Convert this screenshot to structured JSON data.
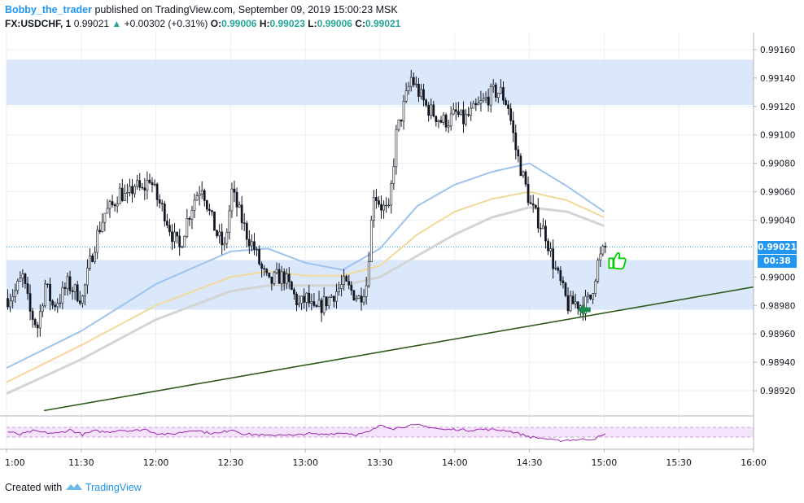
{
  "header": {
    "author": "Bobby_the_trader",
    "published": "published on TradingView.com, September 09, 2019 15:00:23 MSK",
    "symbol": "FX:USDCHF, 1",
    "last": "0.99021",
    "arrow": "▲",
    "change": "+0.00302 (+0.31%)",
    "o_label": "O:",
    "o_value": "0.99006",
    "h_label": "H:",
    "h_value": "0.99023",
    "l_label": "L:",
    "l_value": "0.99006",
    "c_label": "C:",
    "c_value": "0.99021"
  },
  "footer": {
    "created": "Created with",
    "brand": "TradingView",
    "logo_icon": "tradingview-logo-icon"
  },
  "price_badge": {
    "price": "0.99021",
    "countdown": "00:38",
    "price_color": "#2196f3",
    "countdown_color": "#2196f3"
  },
  "chart_data": {
    "type": "candlestick",
    "x_start": "11:00",
    "x_end": "16:00",
    "x_ticks": [
      "1:00",
      "11:30",
      "12:00",
      "12:30",
      "13:00",
      "13:30",
      "14:00",
      "14:30",
      "15:00",
      "15:30",
      "16:00"
    ],
    "y_range": [
      0.98904,
      0.99172
    ],
    "y_ticks": [
      "0.99160",
      "0.99140",
      "0.99120",
      "0.99100",
      "0.99080",
      "0.99060",
      "0.99040",
      "0.99000",
      "0.98980",
      "0.98960",
      "0.98940",
      "0.98920"
    ],
    "up_color": "#ffffff",
    "down_color": "#131722",
    "close_path": [
      [
        "11:00",
        0.98985
      ],
      [
        "11:03",
        0.9899
      ],
      [
        "11:06",
        0.99
      ],
      [
        "11:09",
        0.98975
      ],
      [
        "11:12",
        0.98965
      ],
      [
        "11:15",
        0.98995
      ],
      [
        "11:18",
        0.9898
      ],
      [
        "11:21",
        0.98985
      ],
      [
        "11:24",
        0.98995
      ],
      [
        "11:27",
        0.9899
      ],
      [
        "11:30",
        0.98985
      ],
      [
        "11:33",
        0.9901
      ],
      [
        "11:36",
        0.9903
      ],
      [
        "11:39",
        0.99045
      ],
      [
        "11:42",
        0.9905
      ],
      [
        "11:45",
        0.9906
      ],
      [
        "11:48",
        0.99055
      ],
      [
        "11:51",
        0.99065
      ],
      [
        "11:54",
        0.9906
      ],
      [
        "11:57",
        0.9907
      ],
      [
        "12:00",
        0.99055
      ],
      [
        "12:03",
        0.99045
      ],
      [
        "12:06",
        0.9903
      ],
      [
        "12:09",
        0.9902
      ],
      [
        "12:12",
        0.9904
      ],
      [
        "12:15",
        0.99055
      ],
      [
        "12:18",
        0.99065
      ],
      [
        "12:21",
        0.99045
      ],
      [
        "12:24",
        0.9903
      ],
      [
        "12:27",
        0.9902
      ],
      [
        "12:30",
        0.9906
      ],
      [
        "12:33",
        0.99045
      ],
      [
        "12:36",
        0.9903
      ],
      [
        "12:39",
        0.9902
      ],
      [
        "12:42",
        0.99005
      ],
      [
        "12:45",
        0.98995
      ],
      [
        "12:48",
        0.99
      ],
      [
        "12:51",
        0.99
      ],
      [
        "12:54",
        0.9899
      ],
      [
        "12:57",
        0.9898
      ],
      [
        "13:00",
        0.98985
      ],
      [
        "13:03",
        0.98975
      ],
      [
        "13:06",
        0.9898
      ],
      [
        "13:09",
        0.98985
      ],
      [
        "13:12",
        0.9899
      ],
      [
        "13:15",
        0.98995
      ],
      [
        "13:18",
        0.9899
      ],
      [
        "13:21",
        0.98985
      ],
      [
        "13:24",
        0.98995
      ],
      [
        "13:27",
        0.9906
      ],
      [
        "13:30",
        0.9905
      ],
      [
        "13:33",
        0.99045
      ],
      [
        "13:36",
        0.991
      ],
      [
        "13:39",
        0.9912
      ],
      [
        "13:42",
        0.9914
      ],
      [
        "13:45",
        0.9913
      ],
      [
        "13:48",
        0.9912
      ],
      [
        "13:51",
        0.99115
      ],
      [
        "13:54",
        0.9911
      ],
      [
        "13:57",
        0.9911
      ],
      [
        "14:00",
        0.99115
      ],
      [
        "14:03",
        0.9911
      ],
      [
        "14:06",
        0.99115
      ],
      [
        "14:09",
        0.9912
      ],
      [
        "14:12",
        0.99125
      ],
      [
        "14:15",
        0.9913
      ],
      [
        "14:18",
        0.9913
      ],
      [
        "14:21",
        0.9912
      ],
      [
        "14:24",
        0.9909
      ],
      [
        "14:27",
        0.9907
      ],
      [
        "14:30",
        0.9905
      ],
      [
        "14:33",
        0.9904
      ],
      [
        "14:36",
        0.9903
      ],
      [
        "14:39",
        0.9901
      ],
      [
        "14:42",
        0.98995
      ],
      [
        "14:45",
        0.9898
      ],
      [
        "14:48",
        0.98982
      ],
      [
        "14:51",
        0.9898
      ],
      [
        "14:54",
        0.98985
      ],
      [
        "14:57",
        0.9901
      ],
      [
        "15:00",
        0.99021
      ]
    ],
    "supply_zone": [
      0.99121,
      0.99153
    ],
    "demand_zone": [
      0.98977,
      0.99012
    ],
    "trendline": [
      [
        "11:15",
        0.98906
      ],
      [
        "16:00",
        0.98993
      ]
    ],
    "ma_blue": [
      [
        "11:00",
        0.98936
      ],
      [
        "11:30",
        0.98962
      ],
      [
        "12:00",
        0.98995
      ],
      [
        "12:30",
        0.99018
      ],
      [
        "12:45",
        0.9902
      ],
      [
        "13:00",
        0.9901
      ],
      [
        "13:15",
        0.99005
      ],
      [
        "13:30",
        0.9902
      ],
      [
        "13:45",
        0.9905
      ],
      [
        "14:00",
        0.99065
      ],
      [
        "14:15",
        0.99074
      ],
      [
        "14:30",
        0.9908
      ],
      [
        "14:45",
        0.99064
      ],
      [
        "15:00",
        0.99046
      ]
    ],
    "ma_yellow": [
      [
        "11:00",
        0.98926
      ],
      [
        "11:30",
        0.98952
      ],
      [
        "12:00",
        0.9898
      ],
      [
        "12:30",
        0.99
      ],
      [
        "12:45",
        0.99004
      ],
      [
        "13:00",
        0.99001
      ],
      [
        "13:15",
        0.99001
      ],
      [
        "13:30",
        0.99008
      ],
      [
        "13:45",
        0.9903
      ],
      [
        "14:00",
        0.99046
      ],
      [
        "14:15",
        0.99055
      ],
      [
        "14:30",
        0.9906
      ],
      [
        "14:45",
        0.99054
      ],
      [
        "15:00",
        0.99042
      ]
    ],
    "ma_gray": [
      [
        "11:00",
        0.98918
      ],
      [
        "11:30",
        0.98942
      ],
      [
        "12:00",
        0.9897
      ],
      [
        "12:30",
        0.9899
      ],
      [
        "12:45",
        0.98994
      ],
      [
        "13:00",
        0.98994
      ],
      [
        "13:15",
        0.98994
      ],
      [
        "13:30",
        0.99
      ],
      [
        "13:45",
        0.99015
      ],
      [
        "14:00",
        0.9903
      ],
      [
        "14:15",
        0.99042
      ],
      [
        "14:30",
        0.99049
      ],
      [
        "14:45",
        0.99046
      ],
      [
        "15:00",
        0.99036
      ]
    ],
    "rsi": {
      "band": [
        30,
        70
      ],
      "color": "#9c27b0",
      "values": [
        [
          "11:00",
          52
        ],
        [
          "11:05",
          40
        ],
        [
          "11:10",
          55
        ],
        [
          "11:15",
          48
        ],
        [
          "11:20",
          45
        ],
        [
          "11:25",
          60
        ],
        [
          "11:30",
          40
        ],
        [
          "11:35",
          55
        ],
        [
          "11:40",
          50
        ],
        [
          "11:45",
          60
        ],
        [
          "11:50",
          55
        ],
        [
          "11:55",
          62
        ],
        [
          "12:00",
          45
        ],
        [
          "12:05",
          40
        ],
        [
          "12:10",
          50
        ],
        [
          "12:15",
          60
        ],
        [
          "12:20",
          48
        ],
        [
          "12:25",
          45
        ],
        [
          "12:30",
          62
        ],
        [
          "12:35",
          42
        ],
        [
          "12:40",
          40
        ],
        [
          "12:45",
          35
        ],
        [
          "12:50",
          42
        ],
        [
          "12:55",
          35
        ],
        [
          "13:00",
          45
        ],
        [
          "13:05",
          40
        ],
        [
          "13:10",
          44
        ],
        [
          "13:15",
          48
        ],
        [
          "13:20",
          40
        ],
        [
          "13:25",
          50
        ],
        [
          "13:30",
          80
        ],
        [
          "13:35",
          65
        ],
        [
          "13:40",
          75
        ],
        [
          "13:45",
          78
        ],
        [
          "13:50",
          70
        ],
        [
          "13:55",
          60
        ],
        [
          "14:00",
          62
        ],
        [
          "14:05",
          58
        ],
        [
          "14:10",
          62
        ],
        [
          "14:15",
          60
        ],
        [
          "14:20",
          58
        ],
        [
          "14:25",
          45
        ],
        [
          "14:30",
          30
        ],
        [
          "14:35",
          25
        ],
        [
          "14:40",
          15
        ],
        [
          "14:45",
          18
        ],
        [
          "14:50",
          20
        ],
        [
          "14:55",
          22
        ],
        [
          "15:00",
          40
        ]
      ]
    },
    "thumbs_up_icon": "thumbs-up-icon",
    "arrow_icon": "left-arrow-icon",
    "thumbs_color": "#00cc00",
    "arrow_color": "#1e8a4f"
  }
}
